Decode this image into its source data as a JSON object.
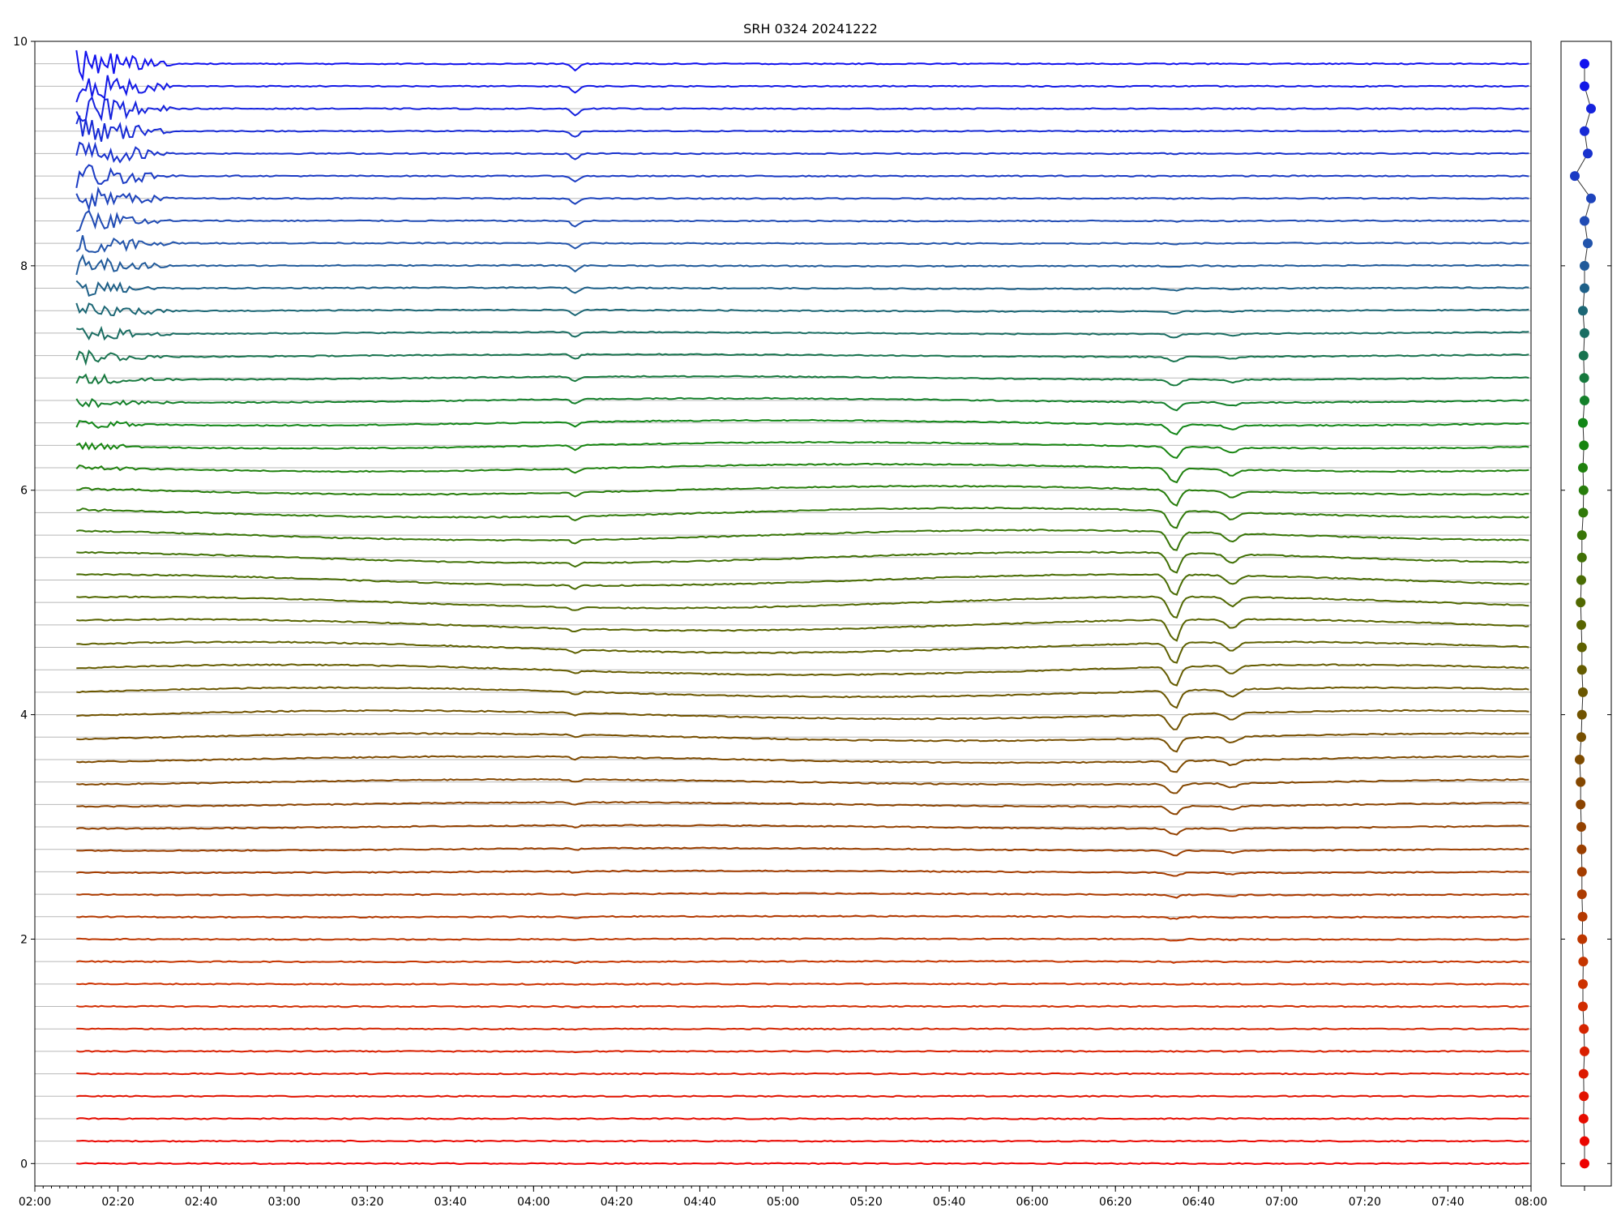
{
  "chart_data": [
    {
      "type": "line",
      "title": "SRH 0324 20241222",
      "xlabel": "",
      "ylabel": "",
      "ylim": [
        -0.2,
        10
      ],
      "xlim": [
        "02:00",
        "08:00"
      ],
      "x_ticks": [
        "02:00",
        "02:20",
        "02:40",
        "03:00",
        "03:20",
        "03:40",
        "04:00",
        "04:20",
        "04:40",
        "05:00",
        "05:20",
        "05:40",
        "06:00",
        "06:20",
        "06:40",
        "07:00",
        "07:20",
        "07:40",
        "08:00"
      ],
      "y_ticks": [
        "0",
        "2",
        "4",
        "6",
        "8",
        "10"
      ],
      "grid": "horizontal lines at each trace baseline",
      "legend": "none",
      "color_gradient": [
        "#ee0000",
        "#cc3300",
        "#884400",
        "#556600",
        "#118811",
        "#2255aa",
        "#1111ee"
      ],
      "trace_count": 50,
      "trace_spacing": 0.2,
      "data_start": "02:10",
      "events": [
        {
          "time": "04:10",
          "description": "small dip in upper traces"
        },
        {
          "time": "06:34",
          "description": "sharp dip in middle traces"
        },
        {
          "time": "06:48",
          "description": "secondary dip"
        }
      ]
    },
    {
      "type": "scatter",
      "title": "",
      "ylim": [
        -0.2,
        10
      ],
      "points_count": 50,
      "x_offsets": [
        0.0,
        0.0,
        -0.03,
        -0.02,
        -0.03,
        0.0,
        -0.02,
        -0.05,
        -0.05,
        -0.04,
        -0.07,
        -0.06,
        -0.08,
        -0.08,
        -0.09,
        -0.1,
        -0.12,
        -0.12,
        -0.15,
        -0.1,
        -0.08,
        -0.05,
        -0.08,
        -0.08,
        -0.1,
        -0.12,
        -0.1,
        -0.08,
        -0.08,
        -0.04,
        -0.03,
        -0.05,
        -0.02,
        -0.05,
        0.0,
        -0.01,
        -0.03,
        0.0,
        -0.05,
        0.0,
        0.0,
        0.1,
        0.0,
        0.2,
        -0.3,
        0.1,
        0.0,
        0.2,
        0.0,
        0.0
      ]
    }
  ]
}
